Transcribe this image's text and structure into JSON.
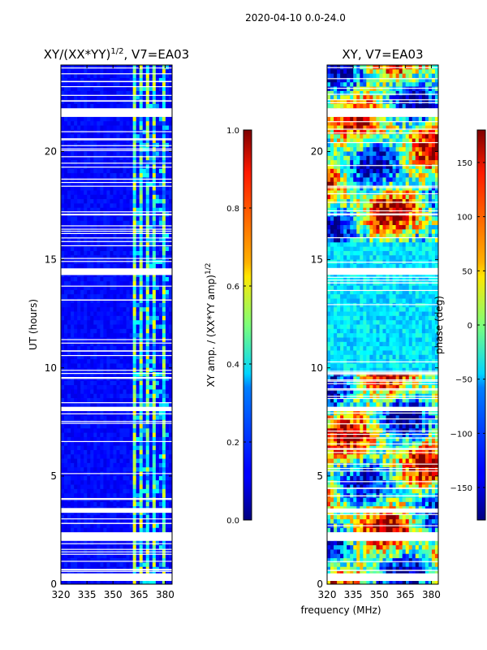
{
  "suptitle": "2020-04-10 0.0-24.0",
  "chart_data": [
    {
      "type": "heatmap",
      "title": "XY/(XX*YY)^1/2, V7=EA03",
      "title_main": "XY/(XX*YY)",
      "title_sup": "1/2",
      "title_rest": ", V7=EA03",
      "xlabel": "",
      "ylabel": "UT (hours)",
      "xlim": [
        320,
        384
      ],
      "ylim": [
        0,
        24
      ],
      "xticks": [
        "320",
        "335",
        "350",
        "365",
        "380"
      ],
      "xtick_values": [
        320,
        335,
        350,
        365,
        380
      ],
      "yticks": [
        "0",
        "5",
        "10",
        "15",
        "20"
      ],
      "ytick_values": [
        0,
        5,
        10,
        15,
        20
      ],
      "colorscale": "jet",
      "colorbar": {
        "label_main": "XY amp. / (XX*YY amp)",
        "label_sup": "1/2",
        "range": [
          0.0,
          1.0
        ],
        "ticks": [
          "0.0",
          "0.2",
          "0.4",
          "0.6",
          "0.8",
          "1.0"
        ],
        "tick_values": [
          0.0,
          0.2,
          0.4,
          0.6,
          0.8,
          1.0
        ]
      },
      "bright_channel_bands_mhz": [
        [
          361,
          364
        ],
        [
          365,
          367
        ],
        [
          369,
          371
        ],
        [
          373,
          375
        ],
        [
          378,
          381
        ]
      ],
      "flagged_gaps_hours": [
        [
          0.15,
          0.5
        ],
        [
          2.0,
          2.4
        ],
        [
          3.3,
          3.5
        ],
        [
          8.0,
          8.2
        ],
        [
          14.3,
          14.6
        ],
        [
          21.6,
          22.0
        ]
      ]
    },
    {
      "type": "heatmap",
      "title": "XY, V7=EA03",
      "xlabel": "frequency (MHz)",
      "ylabel": "",
      "xlim": [
        320,
        384
      ],
      "ylim": [
        0,
        24
      ],
      "xticks": [
        "320",
        "335",
        "350",
        "365",
        "380"
      ],
      "xtick_values": [
        320,
        335,
        350,
        365,
        380
      ],
      "yticks": [
        "0",
        "5",
        "10",
        "15",
        "20"
      ],
      "ytick_values": [
        0,
        5,
        10,
        15,
        20
      ],
      "colorscale": "jet",
      "colorbar": {
        "label": "phase (deg)",
        "range": [
          -180,
          180
        ],
        "ticks": [
          "−150",
          "−100",
          "−50",
          "0",
          "50",
          "100",
          "150"
        ],
        "tick_values": [
          -150,
          -100,
          -50,
          0,
          50,
          100,
          150
        ]
      },
      "flagged_gaps_hours": [
        [
          0.15,
          0.5
        ],
        [
          2.0,
          2.4
        ],
        [
          3.3,
          3.5
        ],
        [
          8.0,
          8.2
        ],
        [
          14.3,
          14.6
        ],
        [
          21.6,
          22.0
        ]
      ]
    }
  ]
}
